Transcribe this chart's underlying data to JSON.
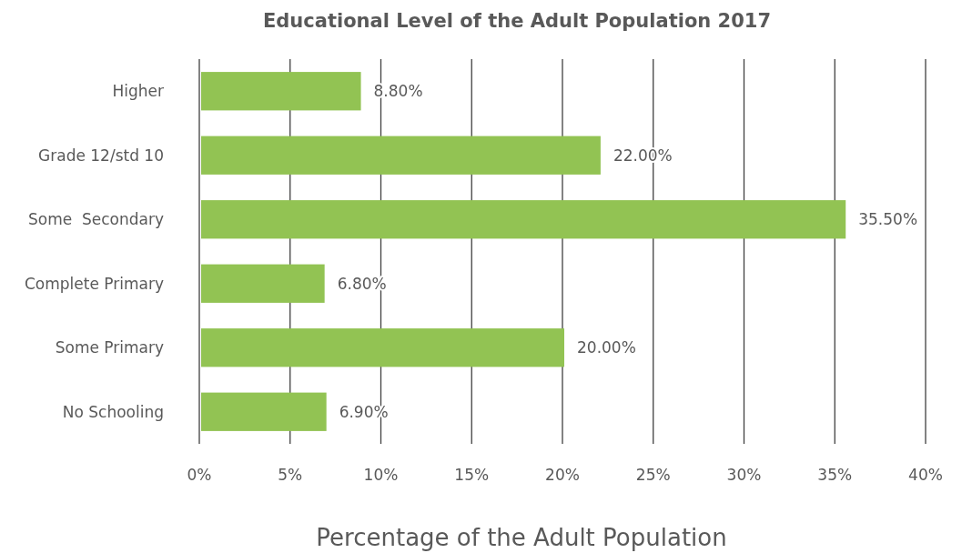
{
  "chart_data": {
    "type": "bar",
    "orientation": "horizontal",
    "title": "Educational Level of the Adult Population 2017",
    "xlabel": "Percentage of the Adult Population",
    "categories": [
      "Higher",
      "Grade 12/std 10",
      "Some  Secondary",
      "Complete Primary",
      "Some Primary",
      "No Schooling"
    ],
    "values": [
      8.8,
      22,
      35.5,
      6.8,
      20,
      6.9
    ],
    "value_labels": [
      "8.80%",
      "22.00%",
      "35.50%",
      "6.80%",
      "20.00%",
      "6.90%"
    ],
    "color": "#92c353",
    "xlim": [
      0,
      40
    ],
    "xticks": [
      {
        "value": 0,
        "label": "0%"
      },
      {
        "value": 5,
        "label": "5%"
      },
      {
        "value": 10,
        "label": "10%"
      },
      {
        "value": 15,
        "label": "15%"
      },
      {
        "value": 20,
        "label": "20%"
      },
      {
        "value": 25,
        "label": "25%"
      },
      {
        "value": 30,
        "label": "30%"
      },
      {
        "value": 35,
        "label": "35%"
      },
      {
        "value": 40,
        "label": "40%"
      }
    ],
    "grid": "x"
  }
}
